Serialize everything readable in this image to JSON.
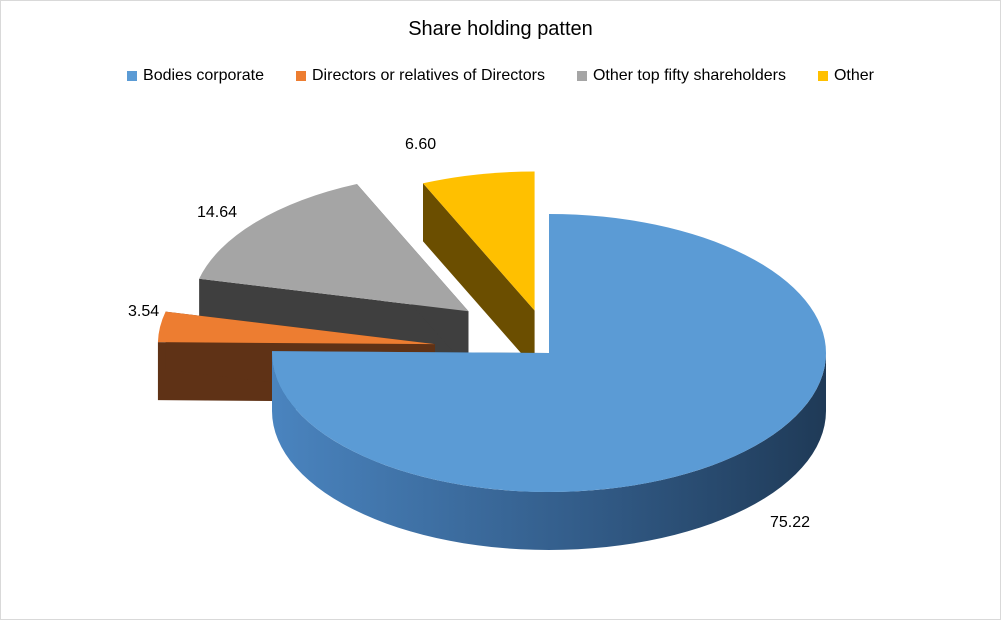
{
  "chart_data": {
    "type": "pie",
    "title": "Share holding patten",
    "legend_position": "top",
    "slices": [
      {
        "name": "Bodies corporate",
        "value": 75.22,
        "label": "75.22",
        "color": "#5b9bd5",
        "side": "#2e5a86"
      },
      {
        "name": "Directors or relatives of Directors",
        "value": 3.54,
        "label": "3.54",
        "color": "#ed7d31",
        "side": "#5f3216"
      },
      {
        "name": "Other top fifty shareholders",
        "value": 14.64,
        "label": "14.64",
        "color": "#a5a5a5",
        "side": "#3f3f3f"
      },
      {
        "name": "Other",
        "value": 6.6,
        "label": "6.60",
        "color": "#ffc000",
        "side": "#6b4e00"
      }
    ]
  }
}
